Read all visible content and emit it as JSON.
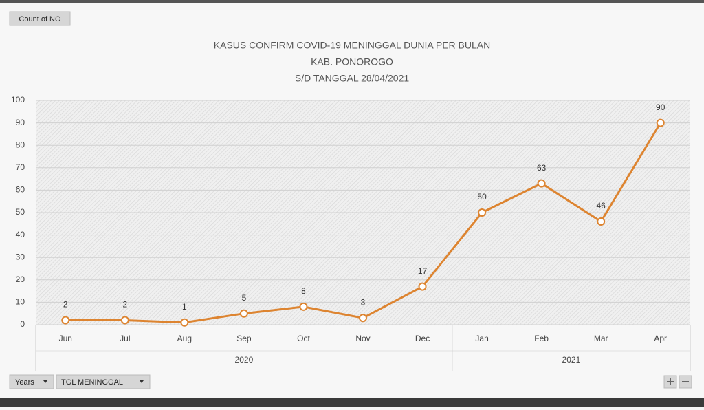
{
  "pivot_buttons": {
    "value_field": "Count of NO",
    "axis_fields": [
      "Years",
      "TGL MENINGGAL"
    ]
  },
  "chart_data": {
    "type": "line",
    "title": [
      "KASUS CONFIRM COVID-19 MENINGGAL DUNIA PER BULAN",
      "KAB. PONOROGO",
      "S/D TANGGAL 28/04/2021"
    ],
    "groups": [
      {
        "name": "2020",
        "categories": [
          "Jun",
          "Jul",
          "Aug",
          "Sep",
          "Oct",
          "Nov",
          "Dec"
        ]
      },
      {
        "name": "2021",
        "categories": [
          "Jan",
          "Feb",
          "Mar",
          "Apr"
        ]
      }
    ],
    "values": [
      2,
      2,
      1,
      5,
      8,
      3,
      17,
      50,
      63,
      46,
      90
    ],
    "color": "#dd8430",
    "ylim": [
      0,
      100
    ],
    "yticks": [
      0,
      10,
      20,
      30,
      40,
      50,
      60,
      70,
      80,
      90,
      100
    ],
    "grid": true
  }
}
